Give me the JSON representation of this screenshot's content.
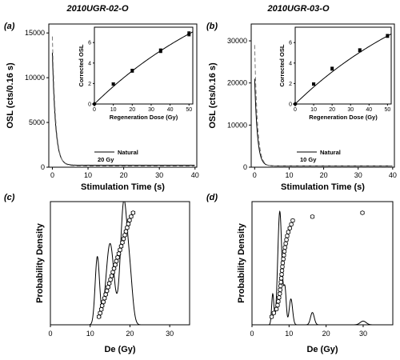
{
  "chart_data": [
    {
      "id": "a",
      "panel_label": "(a)",
      "title": "2010UGR-02-O",
      "type": "line",
      "xlabel": "Stimulation Time (s)",
      "ylabel": "OSL (cts/0.16 s)",
      "xlim": [
        -1,
        40.5
      ],
      "ylim": [
        0,
        16000
      ],
      "xticks": [
        0,
        10,
        20,
        30,
        40
      ],
      "yticks": [
        0,
        5000,
        10000,
        15000
      ],
      "legend_position": "bottom-right",
      "series": [
        {
          "name": "Natural",
          "style": "solid",
          "peak": 12800,
          "background": 220,
          "decay_s": 0.9
        },
        {
          "name": "20 Gy",
          "style": "dashed",
          "peak": 14600,
          "background": 150,
          "decay_s": 0.9
        }
      ],
      "inset": {
        "type": "scatter",
        "xlabel": "Regeneration Dose (Gy)",
        "ylabel": "Corrected OSL",
        "xlim": [
          0,
          52
        ],
        "ylim": [
          0,
          7.5
        ],
        "xticks": [
          0,
          10,
          20,
          30,
          40,
          50
        ],
        "yticks": [
          0,
          2,
          4,
          6
        ],
        "points": [
          {
            "x": 0,
            "y": 0,
            "err": 0
          },
          {
            "x": 10,
            "y": 1.95,
            "err": 0.12
          },
          {
            "x": 20,
            "y": 3.25,
            "err": 0.15
          },
          {
            "x": 35,
            "y": 5.2,
            "err": 0.18
          },
          {
            "x": 50,
            "y": 6.85,
            "err": 0.2
          }
        ],
        "fit": "saturating exponential"
      }
    },
    {
      "id": "b",
      "panel_label": "(b)",
      "title": "2010UGR-03-O",
      "type": "line",
      "xlabel": "Stimulation Time (s)",
      "ylabel": "OSL (cts/0.16 s)",
      "xlim": [
        -1,
        40.5
      ],
      "ylim": [
        0,
        34000
      ],
      "xticks": [
        0,
        10,
        20,
        30,
        40
      ],
      "yticks": [
        0,
        10000,
        20000,
        30000
      ],
      "legend_position": "bottom-right",
      "series": [
        {
          "name": "Natural",
          "style": "solid",
          "peak": 21000,
          "background": 300,
          "decay_s": 0.8
        },
        {
          "name": "10 Gy",
          "style": "dashed",
          "peak": 29000,
          "background": 250,
          "decay_s": 0.8
        }
      ],
      "inset": {
        "type": "scatter",
        "xlabel": "Regeneration Dose (Gy)",
        "ylabel": "Corrected OSL",
        "xlim": [
          0,
          52
        ],
        "ylim": [
          0,
          7.5
        ],
        "xticks": [
          0,
          10,
          20,
          30,
          40,
          50
        ],
        "yticks": [
          0,
          2,
          4,
          6
        ],
        "points": [
          {
            "x": 0,
            "y": 0,
            "err": 0
          },
          {
            "x": 10,
            "y": 1.95,
            "err": 0.12
          },
          {
            "x": 20,
            "y": 3.45,
            "err": 0.15
          },
          {
            "x": 35,
            "y": 5.25,
            "err": 0.15
          },
          {
            "x": 50,
            "y": 6.65,
            "err": 0.15
          }
        ],
        "fit": "saturating exponential"
      }
    },
    {
      "id": "c",
      "panel_label": "(c)",
      "type": "scatter",
      "xlabel": "De (Gy)",
      "ylabel": "Probability Density",
      "xlim": [
        0,
        35
      ],
      "ylim": [
        0,
        1
      ],
      "xticks": [
        0,
        10,
        20,
        30
      ],
      "density_peaks": [
        {
          "mu": 11.8,
          "sigma": 0.55,
          "amp": 0.55
        },
        {
          "mu": 15.0,
          "sigma": 1.0,
          "amp": 0.66
        },
        {
          "mu": 18.4,
          "sigma": 0.8,
          "amp": 0.95
        },
        {
          "mu": 19.9,
          "sigma": 0.75,
          "amp": 0.4
        }
      ],
      "de_values": [
        12.2,
        12.5,
        12.8,
        13.0,
        13.3,
        13.6,
        13.9,
        14.2,
        14.5,
        14.8,
        15.1,
        15.4,
        15.7,
        16.0,
        16.3,
        16.6,
        16.9,
        17.2,
        17.5,
        17.8,
        18.1,
        18.4,
        18.7,
        19.0,
        19.3,
        19.6,
        19.9,
        20.3,
        20.8
      ],
      "de_error": 0.45
    },
    {
      "id": "d",
      "panel_label": "(d)",
      "type": "scatter",
      "xlabel": "De (Gy)",
      "ylabel": "Probability Density",
      "xlim": [
        0,
        38
      ],
      "ylim": [
        0,
        1
      ],
      "xticks": [
        0,
        10,
        20,
        30
      ],
      "density_peaks": [
        {
          "mu": 5.6,
          "sigma": 0.3,
          "amp": 0.25
        },
        {
          "mu": 7.5,
          "sigma": 0.55,
          "amp": 0.92
        },
        {
          "mu": 8.9,
          "sigma": 0.35,
          "amp": 0.28
        },
        {
          "mu": 10.5,
          "sigma": 0.45,
          "amp": 0.21
        },
        {
          "mu": 16.3,
          "sigma": 0.5,
          "amp": 0.1
        },
        {
          "mu": 30.0,
          "sigma": 0.8,
          "amp": 0.03
        }
      ],
      "de_values": [
        5.3,
        5.9,
        6.6,
        6.9,
        7.1,
        7.3,
        7.5,
        7.6,
        7.7,
        7.8,
        7.9,
        8.0,
        8.1,
        8.2,
        8.3,
        8.45,
        8.6,
        8.75,
        8.9,
        9.1,
        9.3,
        9.5,
        9.8,
        10.2,
        10.6,
        11.0,
        16.3,
        29.8
      ],
      "de_error": 0.45
    }
  ]
}
